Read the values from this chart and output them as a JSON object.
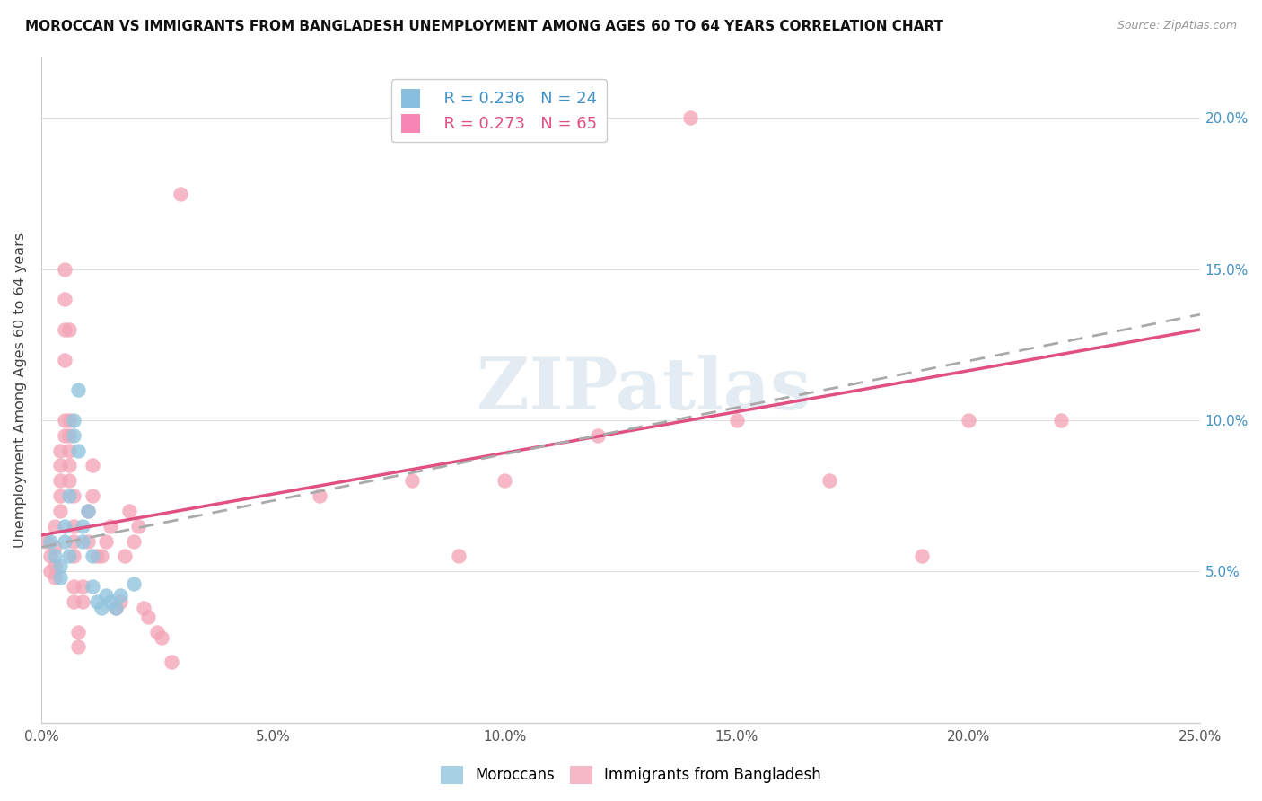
{
  "title": "MOROCCAN VS IMMIGRANTS FROM BANGLADESH UNEMPLOYMENT AMONG AGES 60 TO 64 YEARS CORRELATION CHART",
  "source": "Source: ZipAtlas.com",
  "ylabel": "Unemployment Among Ages 60 to 64 years",
  "xlim": [
    0.0,
    0.25
  ],
  "ylim": [
    0.0,
    0.22
  ],
  "xticks": [
    0.0,
    0.05,
    0.1,
    0.15,
    0.2,
    0.25
  ],
  "yticks_right": [
    0.05,
    0.1,
    0.15,
    0.2
  ],
  "xtick_labels": [
    "0.0%",
    "5.0%",
    "10.0%",
    "15.0%",
    "20.0%",
    "25.0%"
  ],
  "ytick_labels_right": [
    "5.0%",
    "10.0%",
    "15.0%",
    "20.0%"
  ],
  "legend_blue_r": "R = 0.236",
  "legend_blue_n": "N = 24",
  "legend_pink_r": "R = 0.273",
  "legend_pink_n": "N = 65",
  "blue_color": "#92c5de",
  "pink_color": "#f4a6b8",
  "blue_line_color": "#aaaaaa",
  "pink_line_color": "#e05080",
  "blue_legend_color": "#6baed6",
  "pink_legend_color": "#f768a1",
  "watermark": "ZIPatlas",
  "blue_scatter": [
    [
      0.002,
      0.06
    ],
    [
      0.003,
      0.055
    ],
    [
      0.004,
      0.052
    ],
    [
      0.004,
      0.048
    ],
    [
      0.005,
      0.06
    ],
    [
      0.005,
      0.065
    ],
    [
      0.006,
      0.075
    ],
    [
      0.006,
      0.055
    ],
    [
      0.007,
      0.1
    ],
    [
      0.007,
      0.095
    ],
    [
      0.008,
      0.09
    ],
    [
      0.008,
      0.11
    ],
    [
      0.009,
      0.06
    ],
    [
      0.009,
      0.065
    ],
    [
      0.01,
      0.07
    ],
    [
      0.011,
      0.055
    ],
    [
      0.011,
      0.045
    ],
    [
      0.012,
      0.04
    ],
    [
      0.013,
      0.038
    ],
    [
      0.014,
      0.042
    ],
    [
      0.015,
      0.04
    ],
    [
      0.016,
      0.038
    ],
    [
      0.017,
      0.042
    ],
    [
      0.02,
      0.046
    ]
  ],
  "pink_scatter": [
    [
      0.001,
      0.06
    ],
    [
      0.002,
      0.05
    ],
    [
      0.002,
      0.055
    ],
    [
      0.003,
      0.048
    ],
    [
      0.003,
      0.052
    ],
    [
      0.003,
      0.058
    ],
    [
      0.003,
      0.065
    ],
    [
      0.004,
      0.07
    ],
    [
      0.004,
      0.075
    ],
    [
      0.004,
      0.08
    ],
    [
      0.004,
      0.085
    ],
    [
      0.004,
      0.09
    ],
    [
      0.005,
      0.095
    ],
    [
      0.005,
      0.1
    ],
    [
      0.005,
      0.12
    ],
    [
      0.005,
      0.13
    ],
    [
      0.005,
      0.14
    ],
    [
      0.005,
      0.15
    ],
    [
      0.006,
      0.13
    ],
    [
      0.006,
      0.09
    ],
    [
      0.006,
      0.095
    ],
    [
      0.006,
      0.08
    ],
    [
      0.006,
      0.085
    ],
    [
      0.006,
      0.1
    ],
    [
      0.007,
      0.06
    ],
    [
      0.007,
      0.055
    ],
    [
      0.007,
      0.065
    ],
    [
      0.007,
      0.075
    ],
    [
      0.007,
      0.04
    ],
    [
      0.007,
      0.045
    ],
    [
      0.008,
      0.03
    ],
    [
      0.008,
      0.025
    ],
    [
      0.009,
      0.045
    ],
    [
      0.009,
      0.04
    ],
    [
      0.01,
      0.07
    ],
    [
      0.01,
      0.06
    ],
    [
      0.011,
      0.085
    ],
    [
      0.011,
      0.075
    ],
    [
      0.012,
      0.055
    ],
    [
      0.013,
      0.055
    ],
    [
      0.014,
      0.06
    ],
    [
      0.015,
      0.065
    ],
    [
      0.016,
      0.038
    ],
    [
      0.017,
      0.04
    ],
    [
      0.018,
      0.055
    ],
    [
      0.019,
      0.07
    ],
    [
      0.02,
      0.06
    ],
    [
      0.021,
      0.065
    ],
    [
      0.022,
      0.038
    ],
    [
      0.023,
      0.035
    ],
    [
      0.025,
      0.03
    ],
    [
      0.026,
      0.028
    ],
    [
      0.028,
      0.02
    ],
    [
      0.03,
      0.175
    ],
    [
      0.06,
      0.075
    ],
    [
      0.08,
      0.08
    ],
    [
      0.09,
      0.055
    ],
    [
      0.1,
      0.08
    ],
    [
      0.12,
      0.095
    ],
    [
      0.14,
      0.2
    ],
    [
      0.15,
      0.1
    ],
    [
      0.17,
      0.08
    ],
    [
      0.19,
      0.055
    ],
    [
      0.2,
      0.1
    ],
    [
      0.22,
      0.1
    ]
  ],
  "pink_trendline": [
    0.0,
    0.25,
    0.062,
    0.13
  ],
  "blue_trendline": [
    0.0,
    0.25,
    0.058,
    0.135
  ]
}
